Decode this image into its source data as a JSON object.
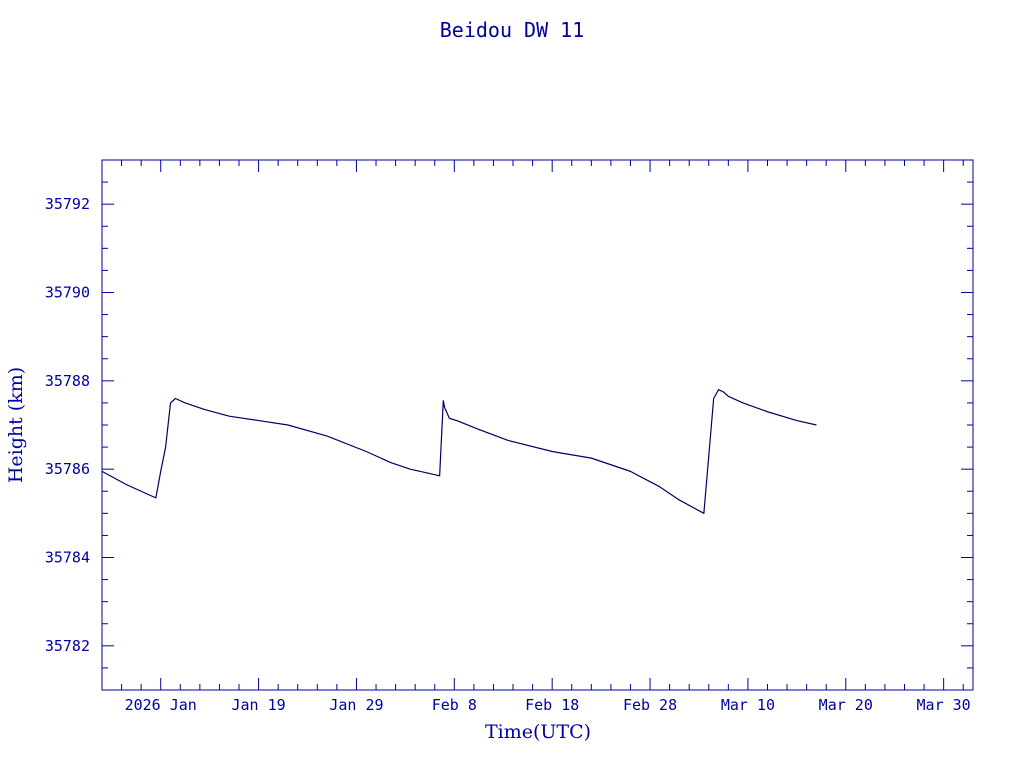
{
  "chart_data": {
    "type": "line",
    "title": "Beidou DW 11",
    "xlabel": "Time(UTC)",
    "ylabel": "Height (km)",
    "grid": false,
    "colors": {
      "line": "#000066",
      "axes": "#0000a0",
      "text": "#0000a0"
    },
    "xlim": [
      "2026-01-03",
      "2026-04-02"
    ],
    "ylim": [
      35781,
      35793
    ],
    "x_tick_labels": [
      {
        "date": "2026-01-09",
        "label": "2026 Jan"
      },
      {
        "date": "2026-01-19",
        "label": "Jan 19"
      },
      {
        "date": "2026-01-29",
        "label": "Jan 29"
      },
      {
        "date": "2026-02-08",
        "label": "Feb  8"
      },
      {
        "date": "2026-02-18",
        "label": "Feb 18"
      },
      {
        "date": "2026-02-28",
        "label": "Feb 28"
      },
      {
        "date": "2026-03-10",
        "label": "Mar 10"
      },
      {
        "date": "2026-03-20",
        "label": "Mar 20"
      },
      {
        "date": "2026-03-30",
        "label": "Mar 30"
      }
    ],
    "y_ticks": [
      35782,
      35784,
      35786,
      35788,
      35790,
      35792
    ],
    "series": [
      {
        "x": [
          "2026-01-03T00:00",
          "2026-01-05T12:00",
          "2026-01-08T12:00",
          "2026-01-09T00:00",
          "2026-01-09T12:00",
          "2026-01-10T00:00",
          "2026-01-10T12:00",
          "2026-01-11T12:00",
          "2026-01-13T12:00",
          "2026-01-16T00:00",
          "2026-01-19T00:00",
          "2026-01-22T00:00",
          "2026-01-26T00:00",
          "2026-01-30T00:00",
          "2026-02-01T12:00",
          "2026-02-03T12:00",
          "2026-02-05T12:00",
          "2026-02-06T12:00",
          "2026-02-06T21:00",
          "2026-02-07T00:00",
          "2026-02-07T12:00",
          "2026-02-08T06:00",
          "2026-02-10T12:00",
          "2026-02-13T12:00",
          "2026-02-18T00:00",
          "2026-02-22T00:00",
          "2026-02-26T00:00",
          "2026-03-01T00:00",
          "2026-03-03T00:00",
          "2026-03-05T12:00",
          "2026-03-06T00:00",
          "2026-03-06T12:00",
          "2026-03-07T00:00",
          "2026-03-07T12:00",
          "2026-03-08T00:00",
          "2026-03-09T12:00",
          "2026-03-12T00:00",
          "2026-03-15T00:00",
          "2026-03-17T00:00"
        ],
        "y": [
          35785.95,
          35785.65,
          35785.35,
          35785.95,
          35786.5,
          35787.5,
          35787.6,
          35787.5,
          35787.35,
          35787.2,
          35787.1,
          35787.0,
          35786.75,
          35786.4,
          35786.15,
          35786.0,
          35785.9,
          35785.85,
          35787.55,
          35787.4,
          35787.15,
          35787.1,
          35786.9,
          35786.65,
          35786.4,
          35786.25,
          35785.95,
          35785.6,
          35785.3,
          35785.0,
          35786.3,
          35787.6,
          35787.8,
          35787.75,
          35787.65,
          35787.5,
          35787.3,
          35787.1,
          35787.0
        ]
      }
    ]
  }
}
